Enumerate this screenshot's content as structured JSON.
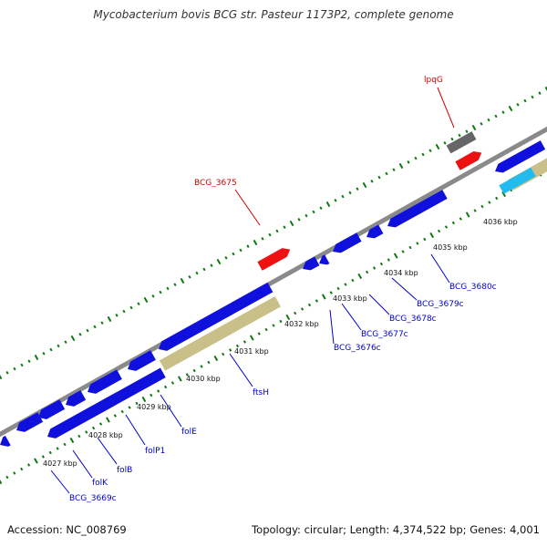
{
  "title": "Mycobacterium bovis BCG str. Pasteur 1173P2, complete genome",
  "footer": {
    "accession": "Accession: NC_008769",
    "summary": "Topology: circular; Length: 4,374,522 bp; Genes: 4,001"
  },
  "colors": {
    "backbone": "#8a8a8a",
    "forward_gene": "#1010dd",
    "reverse_gene": "#1010dd",
    "highlight_gene": "#ee1111",
    "pseudo_gene": "#666666",
    "light_blue_gene": "#22bbee",
    "khaki_region": "#c8c088",
    "tick": "#117711",
    "label_blue": "#0000cc",
    "label_red": "#cc0000"
  },
  "scale_ticks": [
    "4027 kbp",
    "4028 kbp",
    "4029 kbp",
    "4030 kbp",
    "4031 kbp",
    "4032 kbp",
    "4033 kbp",
    "4034 kbp",
    "4035 kbp",
    "4036 kbp"
  ],
  "gene_labels": [
    {
      "name": "lpqG",
      "color": "red"
    },
    {
      "name": "BCG_3675",
      "color": "red"
    },
    {
      "name": "BCG_3680c",
      "color": "blue"
    },
    {
      "name": "BCG_3679c",
      "color": "blue"
    },
    {
      "name": "BCG_3678c",
      "color": "blue"
    },
    {
      "name": "BCG_3677c",
      "color": "blue"
    },
    {
      "name": "BCG_3676c",
      "color": "blue"
    },
    {
      "name": "ftsH",
      "color": "blue"
    },
    {
      "name": "folE",
      "color": "blue"
    },
    {
      "name": "folP1",
      "color": "blue"
    },
    {
      "name": "folB",
      "color": "blue"
    },
    {
      "name": "folK",
      "color": "blue"
    },
    {
      "name": "BCG_3669c",
      "color": "blue"
    }
  ]
}
